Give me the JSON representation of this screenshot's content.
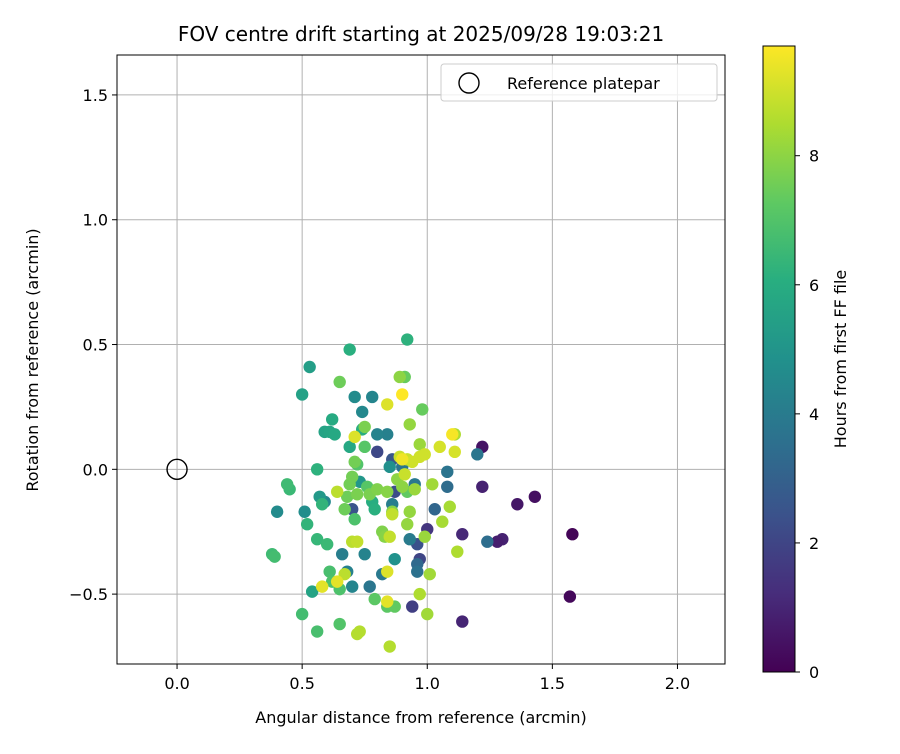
{
  "chart_data": {
    "type": "scatter",
    "title": "FOV centre drift starting at 2025/09/28 19:03:21",
    "xlabel": "Angular distance from reference (arcmin)",
    "ylabel": "Rotation from reference (arcmin)",
    "xlim": [
      -0.24,
      2.19
    ],
    "ylim": [
      -0.78,
      1.66
    ],
    "xticks": [
      0.0,
      0.5,
      1.0,
      1.5,
      2.0
    ],
    "xtick_labels": [
      "0.0",
      "0.5",
      "1.0",
      "1.5",
      "2.0"
    ],
    "yticks": [
      -0.5,
      0.0,
      0.5,
      1.0,
      1.5
    ],
    "ytick_labels": [
      "−0.5",
      "0.0",
      "0.5",
      "1.0",
      "1.5"
    ],
    "grid": true,
    "legend": {
      "placement": "top-right",
      "label": "Reference platepar",
      "marker": "open-circle"
    },
    "reference_point": {
      "x": 0.0,
      "y": 0.0
    },
    "colorbar": {
      "label": "Hours from first FF file",
      "colormap": "viridis",
      "range": [
        0,
        9.7
      ],
      "ticks": [
        0,
        2,
        4,
        6,
        8
      ],
      "tick_labels": [
        "0",
        "2",
        "4",
        "6",
        "8"
      ]
    },
    "points": [
      {
        "x": 1.58,
        "y": -0.26,
        "c": 0.1
      },
      {
        "x": 1.57,
        "y": -0.51,
        "c": 0.2
      },
      {
        "x": 1.43,
        "y": -0.11,
        "c": 0.4
      },
      {
        "x": 1.36,
        "y": -0.14,
        "c": 0.6
      },
      {
        "x": 1.3,
        "y": -0.28,
        "c": 0.9
      },
      {
        "x": 1.28,
        "y": -0.29,
        "c": 0.8
      },
      {
        "x": 1.22,
        "y": -0.07,
        "c": 0.9
      },
      {
        "x": 1.22,
        "y": 0.09,
        "c": 0.5
      },
      {
        "x": 1.14,
        "y": -0.26,
        "c": 1.1
      },
      {
        "x": 1.14,
        "y": -0.61,
        "c": 1.0
      },
      {
        "x": 1.0,
        "y": -0.24,
        "c": 1.5
      },
      {
        "x": 0.97,
        "y": -0.36,
        "c": 2.0
      },
      {
        "x": 0.96,
        "y": -0.3,
        "c": 2.4
      },
      {
        "x": 0.94,
        "y": -0.55,
        "c": 1.8
      },
      {
        "x": 0.87,
        "y": -0.09,
        "c": 2.3
      },
      {
        "x": 0.8,
        "y": 0.07,
        "c": 2.1
      },
      {
        "x": 0.7,
        "y": -0.16,
        "c": 2.5
      },
      {
        "x": 0.86,
        "y": 0.04,
        "c": 2.6
      },
      {
        "x": 1.24,
        "y": -0.29,
        "c": 3.5
      },
      {
        "x": 1.2,
        "y": 0.06,
        "c": 3.8
      },
      {
        "x": 1.08,
        "y": -0.01,
        "c": 3.7
      },
      {
        "x": 1.08,
        "y": -0.07,
        "c": 3.4
      },
      {
        "x": 1.03,
        "y": -0.16,
        "c": 3.2
      },
      {
        "x": 0.96,
        "y": -0.38,
        "c": 3.3
      },
      {
        "x": 0.96,
        "y": -0.41,
        "c": 3.6
      },
      {
        "x": 0.95,
        "y": -0.06,
        "c": 3.9
      },
      {
        "x": 0.93,
        "y": -0.28,
        "c": 4.0
      },
      {
        "x": 0.9,
        "y": 0.01,
        "c": 3.7
      },
      {
        "x": 0.86,
        "y": -0.14,
        "c": 4.1
      },
      {
        "x": 0.84,
        "y": 0.14,
        "c": 4.2
      },
      {
        "x": 0.82,
        "y": -0.42,
        "c": 3.9
      },
      {
        "x": 0.8,
        "y": 0.14,
        "c": 4.3
      },
      {
        "x": 0.78,
        "y": 0.29,
        "c": 4.4
      },
      {
        "x": 0.77,
        "y": -0.47,
        "c": 3.8
      },
      {
        "x": 0.75,
        "y": -0.34,
        "c": 4.3
      },
      {
        "x": 0.74,
        "y": 0.23,
        "c": 4.5
      },
      {
        "x": 0.71,
        "y": 0.29,
        "c": 4.6
      },
      {
        "x": 0.7,
        "y": -0.47,
        "c": 4.4
      },
      {
        "x": 0.68,
        "y": -0.41,
        "c": 4.2
      },
      {
        "x": 0.66,
        "y": -0.34,
        "c": 4.1
      },
      {
        "x": 0.59,
        "y": -0.13,
        "c": 4.5
      },
      {
        "x": 0.4,
        "y": -0.17,
        "c": 4.6
      },
      {
        "x": 0.51,
        "y": -0.17,
        "c": 4.7
      },
      {
        "x": 0.85,
        "y": 0.01,
        "c": 4.8
      },
      {
        "x": 0.87,
        "y": -0.36,
        "c": 4.9
      },
      {
        "x": 0.73,
        "y": -0.05,
        "c": 5.1
      },
      {
        "x": 0.57,
        "y": -0.11,
        "c": 5.2
      },
      {
        "x": 0.53,
        "y": 0.41,
        "c": 5.4
      },
      {
        "x": 0.5,
        "y": 0.3,
        "c": 5.5
      },
      {
        "x": 0.54,
        "y": -0.49,
        "c": 5.6
      },
      {
        "x": 0.59,
        "y": 0.15,
        "c": 5.6
      },
      {
        "x": 0.61,
        "y": 0.15,
        "c": 5.7
      },
      {
        "x": 0.63,
        "y": 0.14,
        "c": 5.8
      },
      {
        "x": 0.62,
        "y": 0.2,
        "c": 5.9
      },
      {
        "x": 0.69,
        "y": 0.09,
        "c": 5.8
      },
      {
        "x": 0.74,
        "y": 0.16,
        "c": 6.0
      },
      {
        "x": 0.78,
        "y": -0.13,
        "c": 6.0
      },
      {
        "x": 0.79,
        "y": -0.16,
        "c": 6.1
      },
      {
        "x": 0.92,
        "y": 0.52,
        "c": 6.2
      },
      {
        "x": 0.69,
        "y": 0.48,
        "c": 6.1
      },
      {
        "x": 0.56,
        "y": 0.0,
        "c": 6.2
      },
      {
        "x": 0.58,
        "y": -0.14,
        "c": 6.3
      },
      {
        "x": 0.52,
        "y": -0.22,
        "c": 6.3
      },
      {
        "x": 0.56,
        "y": -0.28,
        "c": 6.4
      },
      {
        "x": 0.6,
        "y": -0.3,
        "c": 6.5
      },
      {
        "x": 0.45,
        "y": -0.08,
        "c": 6.5
      },
      {
        "x": 0.44,
        "y": -0.06,
        "c": 6.6
      },
      {
        "x": 0.38,
        "y": -0.34,
        "c": 6.6
      },
      {
        "x": 0.39,
        "y": -0.35,
        "c": 6.7
      },
      {
        "x": 0.5,
        "y": -0.58,
        "c": 6.7
      },
      {
        "x": 0.56,
        "y": -0.65,
        "c": 6.8
      },
      {
        "x": 0.61,
        "y": -0.41,
        "c": 6.8
      },
      {
        "x": 0.62,
        "y": -0.45,
        "c": 6.9
      },
      {
        "x": 0.65,
        "y": -0.48,
        "c": 6.9
      },
      {
        "x": 0.65,
        "y": -0.62,
        "c": 7.0
      },
      {
        "x": 0.71,
        "y": -0.2,
        "c": 6.9
      },
      {
        "x": 0.72,
        "y": 0.02,
        "c": 7.0
      },
      {
        "x": 0.75,
        "y": 0.09,
        "c": 7.1
      },
      {
        "x": 0.76,
        "y": -0.07,
        "c": 7.1
      },
      {
        "x": 0.79,
        "y": -0.52,
        "c": 7.2
      },
      {
        "x": 0.84,
        "y": -0.55,
        "c": 7.2
      },
      {
        "x": 0.87,
        "y": -0.55,
        "c": 7.3
      },
      {
        "x": 0.92,
        "y": -0.09,
        "c": 7.3
      },
      {
        "x": 0.98,
        "y": 0.24,
        "c": 7.4
      },
      {
        "x": 0.91,
        "y": 0.37,
        "c": 7.4
      },
      {
        "x": 0.65,
        "y": 0.35,
        "c": 7.5
      },
      {
        "x": 0.67,
        "y": -0.16,
        "c": 7.5
      },
      {
        "x": 0.68,
        "y": -0.11,
        "c": 7.5
      },
      {
        "x": 0.7,
        "y": -0.03,
        "c": 7.6
      },
      {
        "x": 0.69,
        "y": -0.06,
        "c": 7.6
      },
      {
        "x": 0.71,
        "y": 0.03,
        "c": 7.6
      },
      {
        "x": 0.72,
        "y": -0.1,
        "c": 7.7
      },
      {
        "x": 0.75,
        "y": 0.17,
        "c": 7.7
      },
      {
        "x": 0.77,
        "y": -0.1,
        "c": 7.7
      },
      {
        "x": 0.8,
        "y": -0.08,
        "c": 7.8
      },
      {
        "x": 0.82,
        "y": -0.25,
        "c": 7.8
      },
      {
        "x": 0.83,
        "y": -0.27,
        "c": 7.9
      },
      {
        "x": 0.84,
        "y": -0.09,
        "c": 7.9
      },
      {
        "x": 0.86,
        "y": -0.17,
        "c": 7.9
      },
      {
        "x": 0.88,
        "y": -0.04,
        "c": 8.0
      },
      {
        "x": 0.89,
        "y": 0.37,
        "c": 8.0
      },
      {
        "x": 0.9,
        "y": -0.07,
        "c": 8.0
      },
      {
        "x": 0.92,
        "y": -0.22,
        "c": 8.1
      },
      {
        "x": 0.93,
        "y": -0.17,
        "c": 8.1
      },
      {
        "x": 0.93,
        "y": 0.18,
        "c": 8.1
      },
      {
        "x": 0.95,
        "y": -0.08,
        "c": 8.2
      },
      {
        "x": 0.97,
        "y": 0.1,
        "c": 8.2
      },
      {
        "x": 0.99,
        "y": -0.27,
        "c": 8.2
      },
      {
        "x": 1.0,
        "y": -0.58,
        "c": 8.3
      },
      {
        "x": 1.01,
        "y": -0.42,
        "c": 8.3
      },
      {
        "x": 1.02,
        "y": -0.06,
        "c": 8.3
      },
      {
        "x": 1.06,
        "y": -0.21,
        "c": 8.4
      },
      {
        "x": 1.09,
        "y": -0.15,
        "c": 8.4
      },
      {
        "x": 1.11,
        "y": 0.14,
        "c": 8.5
      },
      {
        "x": 1.12,
        "y": -0.33,
        "c": 8.5
      },
      {
        "x": 0.97,
        "y": -0.5,
        "c": 8.5
      },
      {
        "x": 0.85,
        "y": -0.71,
        "c": 8.6
      },
      {
        "x": 0.72,
        "y": -0.66,
        "c": 8.6
      },
      {
        "x": 0.73,
        "y": -0.65,
        "c": 8.6
      },
      {
        "x": 0.64,
        "y": -0.09,
        "c": 8.7
      },
      {
        "x": 0.67,
        "y": -0.42,
        "c": 8.7
      },
      {
        "x": 0.7,
        "y": -0.29,
        "c": 8.7
      },
      {
        "x": 0.72,
        "y": -0.29,
        "c": 8.8
      },
      {
        "x": 0.85,
        "y": -0.27,
        "c": 8.8
      },
      {
        "x": 0.86,
        "y": -0.18,
        "c": 8.8
      },
      {
        "x": 0.89,
        "y": 0.05,
        "c": 8.9
      },
      {
        "x": 0.91,
        "y": -0.02,
        "c": 8.9
      },
      {
        "x": 0.92,
        "y": 0.04,
        "c": 8.9
      },
      {
        "x": 0.94,
        "y": 0.03,
        "c": 9.0
      },
      {
        "x": 0.97,
        "y": 0.05,
        "c": 9.0
      },
      {
        "x": 0.99,
        "y": 0.06,
        "c": 9.0
      },
      {
        "x": 1.05,
        "y": 0.09,
        "c": 9.1
      },
      {
        "x": 1.11,
        "y": 0.07,
        "c": 9.1
      },
      {
        "x": 0.84,
        "y": 0.26,
        "c": 9.2
      },
      {
        "x": 0.71,
        "y": 0.13,
        "c": 9.2
      },
      {
        "x": 0.84,
        "y": -0.41,
        "c": 9.2
      },
      {
        "x": 0.64,
        "y": -0.45,
        "c": 9.3
      },
      {
        "x": 0.58,
        "y": -0.47,
        "c": 9.3
      },
      {
        "x": 0.84,
        "y": -0.53,
        "c": 9.3
      },
      {
        "x": 0.9,
        "y": 0.04,
        "c": 9.5
      },
      {
        "x": 1.1,
        "y": 0.14,
        "c": 9.6
      },
      {
        "x": 0.9,
        "y": 0.3,
        "c": 9.7
      }
    ]
  }
}
